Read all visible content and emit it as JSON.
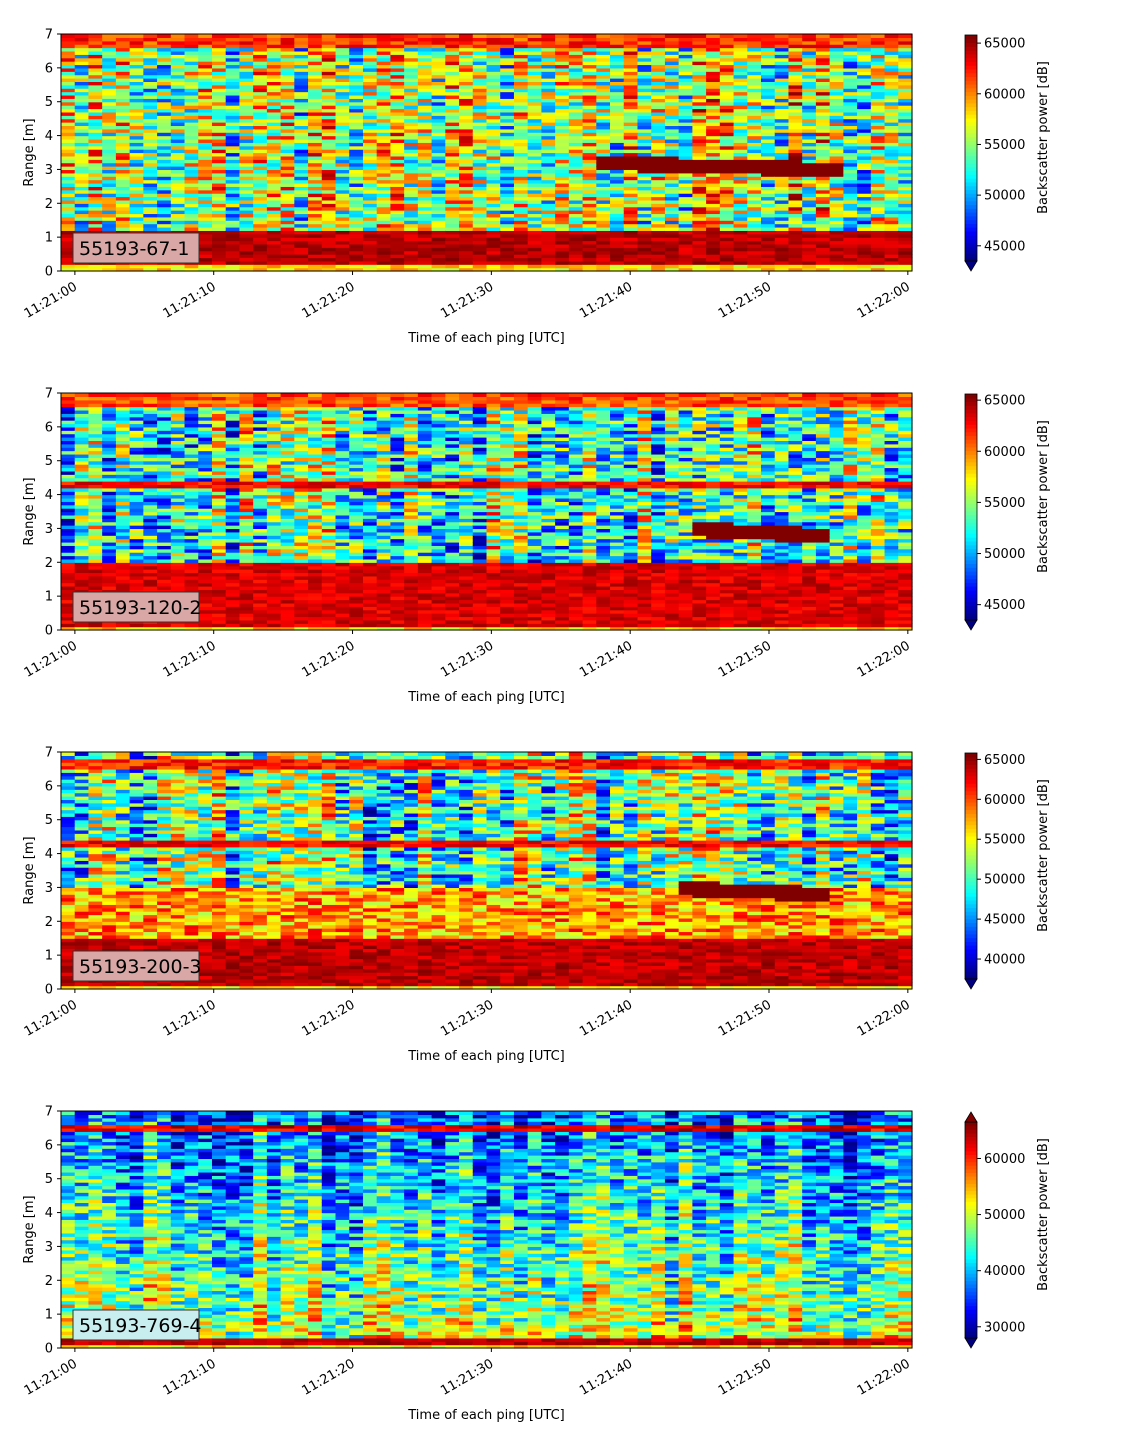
{
  "chart_data": [
    {
      "type": "heatmap",
      "label": "55193-67-1",
      "label_color": "#d9a8a6",
      "xlabel": "Time of each ping [UTC]",
      "ylabel": "Range [m]",
      "colorbar_label": "Backscatter power [dB]",
      "colormap": "jet",
      "x_ticks": [
        "11:21:00",
        "11:21:10",
        "11:21:20",
        "11:21:30",
        "11:21:40",
        "11:21:50",
        "11:22:00"
      ],
      "y_ticks": [
        "0",
        "1",
        "2",
        "3",
        "4",
        "5",
        "6",
        "7"
      ],
      "xlim_seconds": [
        -1,
        60.3
      ],
      "ylim": [
        0,
        7
      ],
      "clim": [
        43500,
        65800
      ],
      "colorbar_ticks": [
        {
          "value": 45000,
          "label": "45000"
        },
        {
          "value": 50000,
          "label": "50000"
        },
        {
          "value": 55000,
          "label": "55000"
        },
        {
          "value": 60000,
          "label": "60000"
        },
        {
          "value": 65000,
          "label": "65000"
        }
      ],
      "extend": "min",
      "features": {
        "bottom_band": {
          "from": 0.2,
          "to": 1.15,
          "level": 1.0
        },
        "top_band": {
          "from": 6.6,
          "to": 7.0,
          "level": 0.92
        },
        "echo_layer": {
          "t_from": 38,
          "t_to": 55,
          "range_at_start": 3.2,
          "range_at_end": 3.0
        },
        "noise_level": 0.55,
        "noise_spread": 0.28
      }
    },
    {
      "type": "heatmap",
      "label": "55193-120-2",
      "label_color": "#d9a8a6",
      "xlabel": "Time of each ping [UTC]",
      "ylabel": "Range [m]",
      "colorbar_label": "Backscatter power [dB]",
      "colormap": "jet",
      "x_ticks": [
        "11:21:00",
        "11:21:10",
        "11:21:20",
        "11:21:30",
        "11:21:40",
        "11:21:50",
        "11:22:00"
      ],
      "y_ticks": [
        "0",
        "1",
        "2",
        "3",
        "4",
        "5",
        "6",
        "7"
      ],
      "xlim_seconds": [
        -1,
        60.3
      ],
      "ylim": [
        0,
        7
      ],
      "clim": [
        43500,
        65600
      ],
      "colorbar_ticks": [
        {
          "value": 45000,
          "label": "45000"
        },
        {
          "value": 50000,
          "label": "50000"
        },
        {
          "value": 55000,
          "label": "55000"
        },
        {
          "value": 60000,
          "label": "60000"
        },
        {
          "value": 65000,
          "label": "65000"
        }
      ],
      "extend": "min",
      "features": {
        "bottom_band": {
          "from": 0.1,
          "to": 2.0,
          "level": 0.97
        },
        "top_band": {
          "from": 6.6,
          "to": 7.0,
          "level": 0.9
        },
        "mid_band": {
          "at": 4.3,
          "level": 0.95
        },
        "echo_layer": {
          "t_from": 44,
          "t_to": 54,
          "range_at_start": 3.0,
          "range_at_end": 2.8
        },
        "noise_level": 0.45,
        "noise_spread": 0.28
      }
    },
    {
      "type": "heatmap",
      "label": "55193-200-3",
      "label_color": "#d9a8a6",
      "xlabel": "Time of each ping [UTC]",
      "ylabel": "Range [m]",
      "colorbar_label": "Backscatter power [dB]",
      "colormap": "jet",
      "x_ticks": [
        "11:21:00",
        "11:21:10",
        "11:21:20",
        "11:21:30",
        "11:21:40",
        "11:21:50",
        "11:22:00"
      ],
      "y_ticks": [
        "0",
        "1",
        "2",
        "3",
        "4",
        "5",
        "6",
        "7"
      ],
      "xlim_seconds": [
        -1,
        60.3
      ],
      "ylim": [
        0,
        7
      ],
      "clim": [
        37500,
        65800
      ],
      "colorbar_ticks": [
        {
          "value": 40000,
          "label": "40000"
        },
        {
          "value": 45000,
          "label": "45000"
        },
        {
          "value": 50000,
          "label": "50000"
        },
        {
          "value": 55000,
          "label": "55000"
        },
        {
          "value": 60000,
          "label": "60000"
        },
        {
          "value": 65000,
          "label": "65000"
        }
      ],
      "extend": "min",
      "features": {
        "bottom_band": {
          "from": 0.1,
          "to": 1.5,
          "level": 1.0
        },
        "upper_mid": {
          "from": 1.5,
          "to": 3.0,
          "level": 0.72
        },
        "top_band": {
          "from": 6.5,
          "to": 6.75,
          "level": 0.95
        },
        "mid_band": {
          "at": 4.3,
          "level": 0.95
        },
        "echo_layer": {
          "t_from": 43,
          "t_to": 54,
          "range_at_start": 3.0,
          "range_at_end": 2.8
        },
        "noise_level": 0.45,
        "noise_spread": 0.28
      }
    },
    {
      "type": "heatmap",
      "label": "55193-769-4",
      "label_color": "#c9eef0",
      "xlabel": "Time of each ping [UTC]",
      "ylabel": "Range [m]",
      "colorbar_label": "Backscatter power [dB]",
      "colormap": "jet",
      "x_ticks": [
        "11:21:00",
        "11:21:10",
        "11:21:20",
        "11:21:30",
        "11:21:40",
        "11:21:50",
        "11:22:00"
      ],
      "y_ticks": [
        "0",
        "1",
        "2",
        "3",
        "4",
        "5",
        "6",
        "7"
      ],
      "xlim_seconds": [
        -1,
        60.3
      ],
      "ylim": [
        0,
        7
      ],
      "clim": [
        28000,
        66500
      ],
      "colorbar_ticks": [
        {
          "value": 30000,
          "label": "30000"
        },
        {
          "value": 40000,
          "label": "40000"
        },
        {
          "value": 50000,
          "label": "50000"
        },
        {
          "value": 60000,
          "label": "60000"
        }
      ],
      "extend": "both",
      "features": {
        "bottom_band": {
          "from": 0.15,
          "to": 0.3,
          "level": 1.0
        },
        "top_band": {
          "from": 6.4,
          "to": 6.6,
          "level": 1.0
        },
        "gradient": {
          "bottom_level": 0.6,
          "top_level": 0.22
        },
        "noise_level": 0.4,
        "noise_spread": 0.22
      }
    }
  ]
}
